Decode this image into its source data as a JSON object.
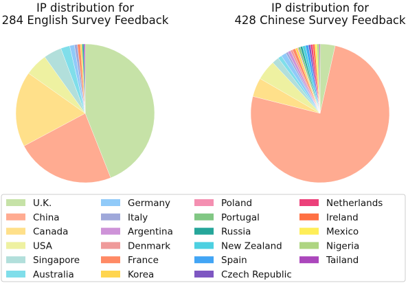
{
  "chart_data": [
    {
      "type": "pie",
      "title": [
        "IP distribution for",
        "284 English Survey Feedback"
      ],
      "categories": [
        "U.K.",
        "China",
        "Canada",
        "USA",
        "Singapore",
        "Australia",
        "Germany",
        "Italy",
        "Argentina",
        "Denmark",
        "France",
        "Korea",
        "Poland",
        "Portugal",
        "Russia",
        "New Zealand",
        "Spain",
        "Czech Republic",
        "Netherlands",
        "Ireland",
        "Mexico",
        "Nigeria",
        "Tailand"
      ],
      "values": [
        44.0,
        23.2,
        17.6,
        5.3,
        4.2,
        2.1,
        1.1,
        0.7,
        0.0,
        0.0,
        0.7,
        0.4,
        0.0,
        0.0,
        0.4,
        0.0,
        0.0,
        0.0,
        0.0,
        0.0,
        0.0,
        0.0,
        0.3
      ],
      "legend": "shared-bottom"
    },
    {
      "type": "pie",
      "title": [
        "IP distribution for",
        "428 Chinese Survey Feedback"
      ],
      "categories": [
        "U.K.",
        "China",
        "Canada",
        "USA",
        "Singapore",
        "Australia",
        "Germany",
        "Italy",
        "Argentina",
        "Denmark",
        "France",
        "Korea",
        "Poland",
        "Portugal",
        "Russia",
        "New Zealand",
        "Spain",
        "Czech Republic",
        "Netherlands",
        "Ireland",
        "Mexico",
        "Nigeria",
        "Tailand"
      ],
      "values": [
        3.5,
        75.2,
        4.4,
        4.7,
        1.6,
        0.9,
        1.2,
        0.5,
        0.7,
        0.5,
        0.7,
        0.5,
        0.2,
        0.5,
        0.5,
        0.7,
        0.7,
        0.5,
        0.5,
        0.5,
        0.5,
        0.5,
        0.2
      ],
      "legend": "shared-bottom"
    }
  ],
  "legend": {
    "columns": 4,
    "rows": 6,
    "items": [
      {
        "label": "U.K.",
        "color": "#c6e2a7"
      },
      {
        "label": "China",
        "color": "#ffab91"
      },
      {
        "label": "Canada",
        "color": "#ffe08a"
      },
      {
        "label": "USA",
        "color": "#eef1a1"
      },
      {
        "label": "Singapore",
        "color": "#b2dfdb"
      },
      {
        "label": "Australia",
        "color": "#80deea"
      },
      {
        "label": "Germany",
        "color": "#90caf9"
      },
      {
        "label": "Italy",
        "color": "#9fa8da"
      },
      {
        "label": "Argentina",
        "color": "#ce93d8"
      },
      {
        "label": "Denmark",
        "color": "#ef9a9a"
      },
      {
        "label": "France",
        "color": "#ff8a65"
      },
      {
        "label": "Korea",
        "color": "#ffd54f"
      },
      {
        "label": "Poland",
        "color": "#f48fb1"
      },
      {
        "label": "Portugal",
        "color": "#81c784"
      },
      {
        "label": "Russia",
        "color": "#26a69a"
      },
      {
        "label": "New Zealand",
        "color": "#4dd0e1"
      },
      {
        "label": "Spain",
        "color": "#42a5f5"
      },
      {
        "label": "Czech Republic",
        "color": "#7e57c2"
      },
      {
        "label": "Netherlands",
        "color": "#ec407a"
      },
      {
        "label": "Ireland",
        "color": "#ff7043"
      },
      {
        "label": "Mexico",
        "color": "#ffee58"
      },
      {
        "label": "Nigeria",
        "color": "#aed581"
      },
      {
        "label": "Tailand",
        "color": "#ab47bc"
      }
    ]
  }
}
